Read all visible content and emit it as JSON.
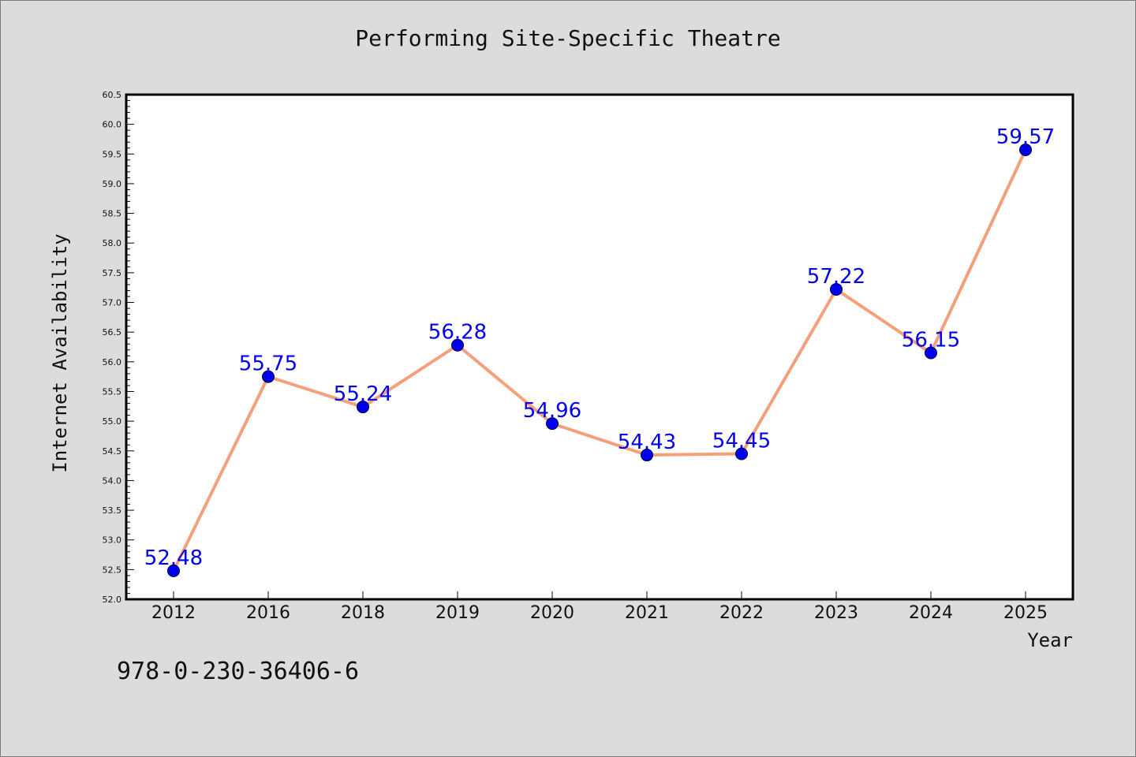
{
  "chart_data": {
    "type": "line",
    "title": "Performing Site-Specific Theatre",
    "xlabel": "Year",
    "ylabel": "Internet Availability",
    "categories": [
      "2012",
      "2016",
      "2018",
      "2019",
      "2020",
      "2021",
      "2022",
      "2023",
      "2024",
      "2025"
    ],
    "series": [
      {
        "values": [
          52.48,
          55.75,
          55.24,
          56.28,
          54.96,
          54.43,
          54.45,
          57.22,
          56.15,
          59.57
        ],
        "data_labels": [
          "52.48",
          "55.75",
          "55.24",
          "56.28",
          "54.96",
          "54.43",
          "54.45",
          "57.22",
          "56.15",
          "59.57"
        ]
      }
    ],
    "ylim": [
      52.0,
      60.5
    ],
    "yticks": [
      "52.0",
      "52.5",
      "53.0",
      "53.5",
      "54.0",
      "54.5",
      "55.0",
      "55.5",
      "56.0",
      "56.5",
      "57.0",
      "57.5",
      "58.0",
      "58.5",
      "59.0",
      "59.5",
      "60.0",
      "60.5"
    ],
    "grid": false,
    "legend": "none",
    "colors": {
      "line": "#f4a07c",
      "marker": "#0000ee",
      "label": "#0000ee",
      "plot_background": "#ffffff",
      "page_background": "#dcdcdc"
    }
  },
  "footer_text": "978-0-230-36406-6"
}
